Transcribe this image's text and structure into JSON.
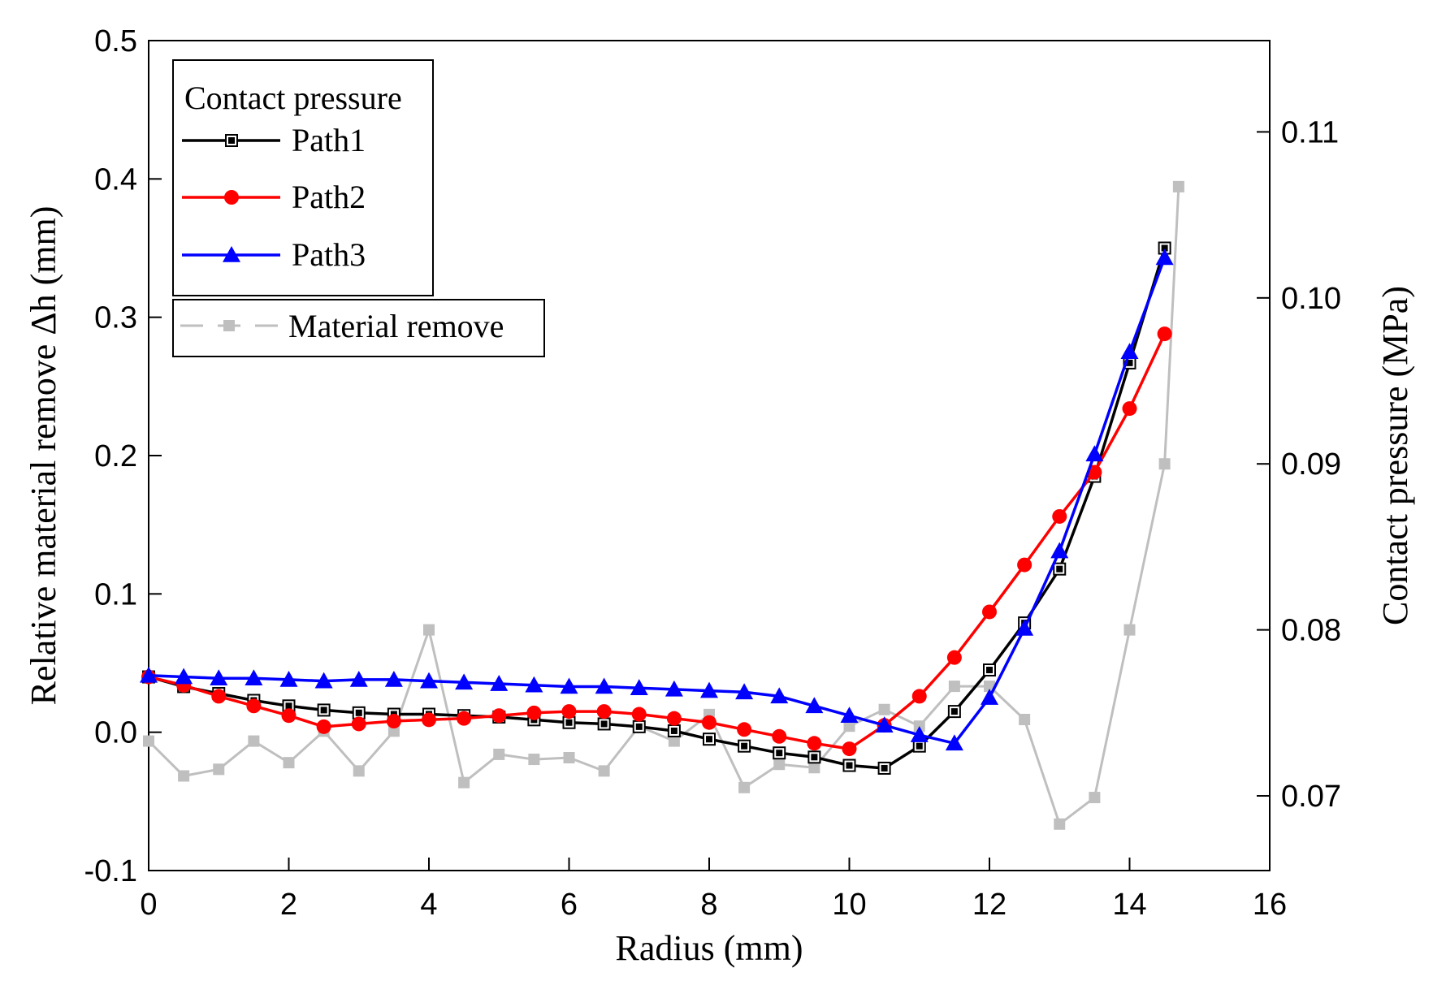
{
  "chart_data": {
    "type": "line",
    "xlabel": "Radius (mm)",
    "ylabel": "Relative material remove Δh (mm)",
    "y2label": "Contact pressure (MPa)",
    "xlim": [
      0,
      16
    ],
    "ylim": [
      -0.1,
      0.5
    ],
    "y2lim": [
      0.0655,
      0.1155
    ],
    "xticks": [
      "0",
      "2",
      "4",
      "6",
      "8",
      "10",
      "12",
      "14",
      "16"
    ],
    "yticks": [
      "-0.1",
      "0.0",
      "0.1",
      "0.2",
      "0.3",
      "0.4",
      "0.5"
    ],
    "y2ticks": [
      "0.07",
      "0.08",
      "0.09",
      "0.10",
      "0.11"
    ],
    "legend": {
      "title": "Contact pressure",
      "entries": [
        "Path1",
        "Path2",
        "Path3"
      ],
      "separate_entry": "Material remove"
    },
    "series": [
      {
        "name": "Path1",
        "axis": "left",
        "color": "#000000",
        "marker": "square-hollow",
        "x": [
          0,
          0.5,
          1,
          1.5,
          2,
          2.5,
          3,
          3.5,
          4,
          4.5,
          5,
          5.5,
          6,
          6.5,
          7,
          7.5,
          8,
          8.5,
          9,
          9.5,
          10,
          10.5,
          11,
          11.5,
          12,
          12.5,
          13,
          13.5,
          14,
          14.5
        ],
        "values": [
          0.04,
          0.033,
          0.028,
          0.023,
          0.019,
          0.016,
          0.014,
          0.013,
          0.013,
          0.012,
          0.011,
          0.009,
          0.007,
          0.006,
          0.004,
          0.001,
          -0.005,
          -0.01,
          -0.015,
          -0.018,
          -0.024,
          -0.026,
          -0.01,
          0.015,
          0.045,
          0.079,
          0.118,
          0.185,
          0.267,
          0.35
        ]
      },
      {
        "name": "Path2",
        "axis": "left",
        "color": "#ff0000",
        "marker": "circle",
        "x": [
          0,
          0.5,
          1,
          1.5,
          2,
          2.5,
          3,
          3.5,
          4,
          4.5,
          5,
          5.5,
          6,
          6.5,
          7,
          7.5,
          8,
          8.5,
          9,
          9.5,
          10,
          10.5,
          11,
          11.5,
          12,
          12.5,
          13,
          13.5,
          14,
          14.5
        ],
        "values": [
          0.04,
          0.034,
          0.026,
          0.019,
          0.012,
          0.004,
          0.006,
          0.008,
          0.009,
          0.01,
          0.012,
          0.014,
          0.015,
          0.015,
          0.013,
          0.01,
          0.007,
          0.002,
          -0.003,
          -0.008,
          -0.012,
          0.005,
          0.026,
          0.054,
          0.087,
          0.121,
          0.156,
          0.188,
          0.234,
          0.288
        ]
      },
      {
        "name": "Path3",
        "axis": "left",
        "color": "#0000ff",
        "marker": "triangle",
        "x": [
          0,
          0.5,
          1,
          1.5,
          2,
          2.5,
          3,
          3.5,
          4,
          4.5,
          5,
          5.5,
          6,
          6.5,
          7,
          7.5,
          8,
          8.5,
          9,
          9.5,
          10,
          10.5,
          11,
          11.5,
          12,
          12.5,
          13,
          13.5,
          14,
          14.5
        ],
        "values": [
          0.041,
          0.04,
          0.039,
          0.039,
          0.038,
          0.037,
          0.038,
          0.038,
          0.037,
          0.036,
          0.035,
          0.034,
          0.033,
          0.033,
          0.032,
          0.031,
          0.03,
          0.029,
          0.026,
          0.019,
          0.012,
          0.005,
          -0.002,
          -0.008,
          0.025,
          0.075,
          0.131,
          0.201,
          0.275,
          0.343
        ]
      },
      {
        "name": "Material remove",
        "axis": "right",
        "color": "#bfbfbf",
        "marker": "square",
        "x": [
          0,
          0.5,
          1,
          1.5,
          2,
          2.5,
          3,
          3.5,
          4,
          4.5,
          5,
          5.5,
          6,
          6.5,
          7,
          7.5,
          8,
          8.5,
          9,
          9.5,
          10,
          10.5,
          11,
          11.5,
          12,
          12.5,
          13,
          13.5,
          14,
          14.5,
          14.7
        ],
        "values": [
          0.0733,
          0.0712,
          0.0716,
          0.0733,
          0.072,
          0.0739,
          0.0715,
          0.0739,
          0.08,
          0.0708,
          0.0725,
          0.0722,
          0.0723,
          0.0715,
          0.0742,
          0.0733,
          0.0749,
          0.0705,
          0.0719,
          0.0717,
          0.0742,
          0.0752,
          0.0742,
          0.0766,
          0.0766,
          0.0746,
          0.0683,
          0.0699,
          0.08,
          0.09,
          0.1067
        ]
      }
    ]
  }
}
